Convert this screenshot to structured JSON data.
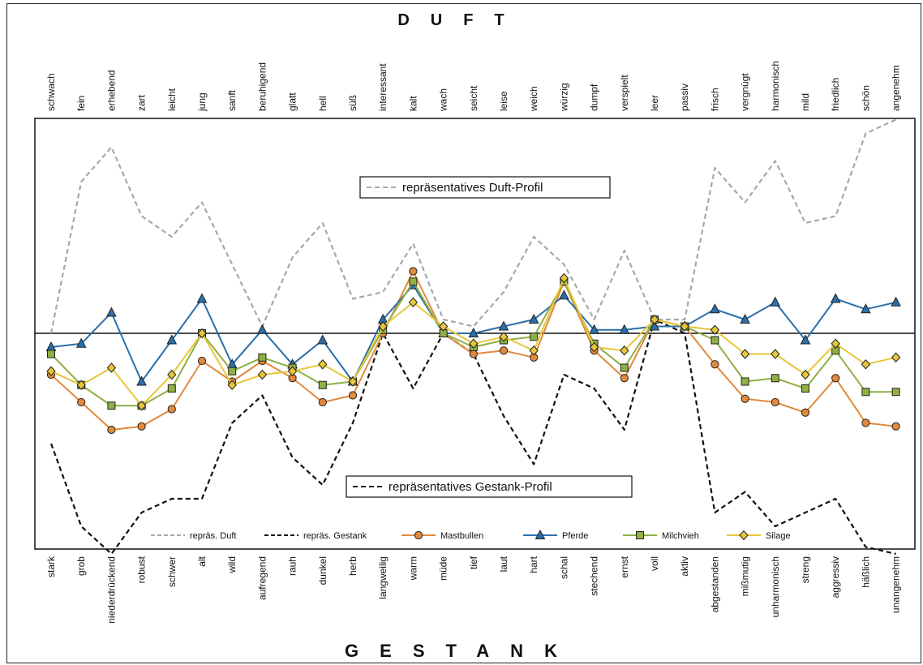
{
  "chart_data": {
    "type": "line",
    "title_top": "DUFT",
    "title_bottom": "GESTANK",
    "categories_top": [
      "schwach",
      "fein",
      "erhebend",
      "zart",
      "leicht",
      "jung",
      "sanft",
      "beruhigend",
      "glatt",
      "hell",
      "süß",
      "interessant",
      "kalt",
      "wach",
      "seicht",
      "leise",
      "weich",
      "würzig",
      "dumpf",
      "verspielt",
      "leer",
      "passiv",
      "frisch",
      "vergnügt",
      "harmonisch",
      "mild",
      "friedlich",
      "schön",
      "angenehm"
    ],
    "categories_bottom": [
      "stark",
      "grob",
      "niederdrückend",
      "robust",
      "schwer",
      "alt",
      "wild",
      "aufregend",
      "rauh",
      "dunkel",
      "herb",
      "langweilig",
      "warm",
      "müde",
      "tief",
      "laut",
      "hart",
      "schal",
      "stechend",
      "ernst",
      "voll",
      "aktiv",
      "abgestanden",
      "mißmutig",
      "unharmonisch",
      "streng",
      "aggressiv",
      "häßlich",
      "unangenehm"
    ],
    "ylim": [
      -3,
      3
    ],
    "baseline": 0,
    "annotations": [
      "repräsentatives Duft-Profil",
      "repräsentatives Gestank-Profil"
    ],
    "legend_position": "bottom",
    "series": [
      {
        "name": "repräs. Duft",
        "style": "dashed",
        "color": "#a8a8a8",
        "values": [
          0.0,
          2.2,
          2.7,
          1.7,
          1.4,
          1.9,
          1.0,
          0.1,
          1.1,
          1.6,
          0.5,
          0.6,
          1.3,
          0.2,
          0.1,
          0.6,
          1.4,
          1.0,
          0.2,
          1.2,
          0.2,
          0.2,
          2.4,
          1.9,
          2.5,
          1.6,
          1.7,
          2.9,
          3.1
        ]
      },
      {
        "name": "repräs. Gestank",
        "style": "dashed",
        "color": "#111111",
        "values": [
          -1.6,
          -2.8,
          -3.2,
          -2.6,
          -2.4,
          -2.4,
          -1.3,
          -0.9,
          -1.8,
          -2.2,
          -1.3,
          0.0,
          -0.8,
          0.0,
          -0.3,
          -1.2,
          -1.9,
          -0.6,
          -0.8,
          -1.4,
          0.2,
          0.0,
          -2.6,
          -2.3,
          -2.8,
          -2.6,
          -2.4,
          -3.1,
          -3.2
        ]
      },
      {
        "name": "Mastbullen",
        "marker": "circle",
        "color": "#e08a3c",
        "values": [
          -0.6,
          -1.0,
          -1.4,
          -1.35,
          -1.1,
          -0.4,
          -0.7,
          -0.4,
          -0.65,
          -1.0,
          -0.9,
          0.0,
          0.9,
          0.0,
          -0.3,
          -0.25,
          -0.35,
          0.75,
          -0.25,
          -0.65,
          0.2,
          0.1,
          -0.45,
          -0.95,
          -1.0,
          -1.15,
          -0.65,
          -1.3,
          -1.35
        ]
      },
      {
        "name": "Pferde",
        "marker": "triangle",
        "color": "#2b6faa",
        "values": [
          -0.2,
          -0.15,
          0.3,
          -0.7,
          -0.1,
          0.5,
          -0.45,
          0.05,
          -0.45,
          -0.1,
          -0.7,
          0.2,
          0.7,
          0.0,
          0.0,
          0.1,
          0.2,
          0.55,
          0.05,
          0.05,
          0.1,
          0.1,
          0.35,
          0.2,
          0.45,
          -0.1,
          0.5,
          0.35,
          0.45
        ]
      },
      {
        "name": "Milchvieh",
        "marker": "square",
        "color": "#8fb043",
        "values": [
          -0.3,
          -0.75,
          -1.05,
          -1.05,
          -0.8,
          0.0,
          -0.55,
          -0.35,
          -0.5,
          -0.75,
          -0.7,
          0.05,
          0.75,
          0.0,
          -0.2,
          -0.1,
          -0.05,
          0.75,
          -0.15,
          -0.5,
          0.2,
          0.1,
          -0.1,
          -0.7,
          -0.65,
          -0.8,
          -0.25,
          -0.85,
          -0.85
        ]
      },
      {
        "name": "Silage",
        "marker": "diamond",
        "color": "#e8c63a",
        "values": [
          -0.55,
          -0.75,
          -0.5,
          -1.05,
          -0.6,
          0.0,
          -0.75,
          -0.6,
          -0.55,
          -0.45,
          -0.7,
          0.1,
          0.45,
          0.1,
          -0.15,
          -0.05,
          -0.25,
          0.8,
          -0.2,
          -0.25,
          0.2,
          0.1,
          0.05,
          -0.3,
          -0.3,
          -0.6,
          -0.15,
          -0.45,
          -0.35
        ]
      }
    ]
  }
}
